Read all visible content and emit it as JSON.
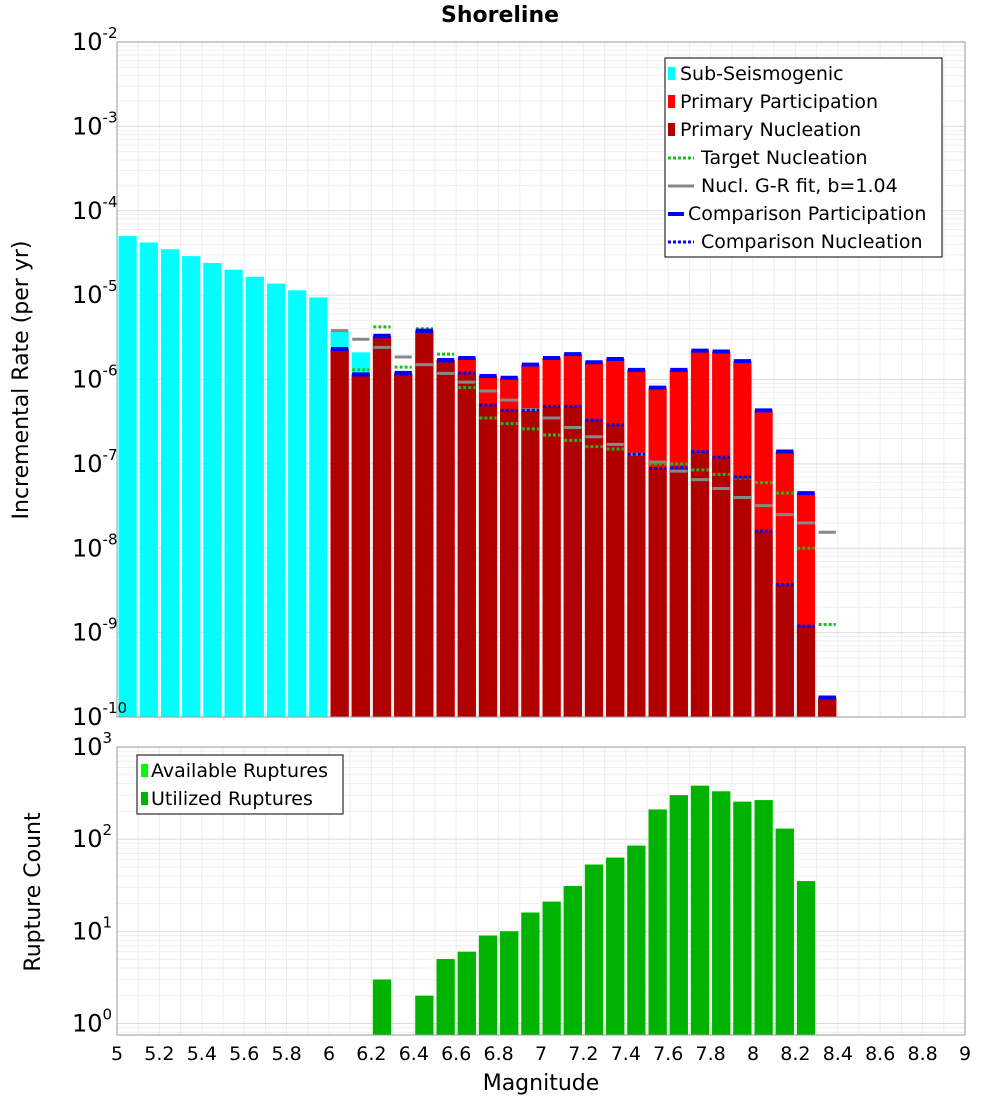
{
  "title": "Shoreline",
  "chart_data": [
    {
      "type": "bar",
      "panel": "top",
      "yscale": "log",
      "xlim": [
        5,
        9
      ],
      "ylim": [
        1e-10,
        0.01
      ],
      "ylabel": "Incremental Rate (per yr)",
      "ytick_exponents": [
        -10,
        -9,
        -8,
        -7,
        -6,
        -5,
        -4,
        -3,
        -2
      ],
      "legend_position": "top-right",
      "legend": [
        {
          "label": "Sub-Seismogenic",
          "style": "bar",
          "color": "#00ffff"
        },
        {
          "label": "Primary Participation",
          "style": "bar",
          "color": "#ff0000"
        },
        {
          "label": "Primary Nucleation",
          "style": "bar",
          "color": "#b00000"
        },
        {
          "label": "Target Nucleation",
          "style": "dotted",
          "color": "#1fba1f"
        },
        {
          "label": "Nucl. G-R fit, b=1.04",
          "style": "solid",
          "color": "#888888"
        },
        {
          "label": "Comparison Participation",
          "style": "solid",
          "color": "#0000ff"
        },
        {
          "label": "Comparison Nucleation",
          "style": "dotted",
          "color": "#0000ff"
        }
      ],
      "sub_seismogenic": {
        "x": [
          5.05,
          5.15,
          5.25,
          5.35,
          5.45,
          5.55,
          5.65,
          5.75,
          5.85,
          5.95,
          6.05,
          6.15
        ],
        "values": [
          5e-05,
          4.2e-05,
          3.5e-05,
          2.9e-05,
          2.4e-05,
          2e-05,
          1.65e-05,
          1.37e-05,
          1.14e-05,
          9.4e-06,
          3.8e-06,
          2.1e-06
        ]
      },
      "x": [
        6.05,
        6.15,
        6.25,
        6.35,
        6.45,
        6.55,
        6.65,
        6.75,
        6.85,
        6.95,
        7.05,
        7.15,
        7.25,
        7.35,
        7.45,
        7.55,
        7.65,
        7.75,
        7.85,
        7.95,
        8.05,
        8.15,
        8.25,
        8.35
      ],
      "participation": [
        2.3e-06,
        1.15e-06,
        3.3e-06,
        1.2e-06,
        3.8e-06,
        1.7e-06,
        1.8e-06,
        1.1e-06,
        1.05e-06,
        1.5e-06,
        1.8e-06,
        2e-06,
        1.6e-06,
        1.75e-06,
        1.3e-06,
        8e-07,
        1.3e-06,
        2.2e-06,
        2.15e-06,
        1.65e-06,
        4.3e-07,
        1.4e-07,
        4.5e-08,
        1.7e-10
      ],
      "nucleation": [
        2.3e-06,
        1.15e-06,
        3.2e-06,
        1.15e-06,
        3.7e-06,
        1.65e-06,
        1.2e-06,
        5e-07,
        4.3e-07,
        4.3e-07,
        4.8e-07,
        4.8e-07,
        3.3e-07,
        2.9e-07,
        1.3e-07,
        8.8e-08,
        9e-08,
        1.4e-07,
        1.2e-07,
        7e-08,
        1.6e-08,
        3.7e-09,
        1.2e-09,
        1.7e-10
      ],
      "target_nucleation": [
        2.3e-06,
        1.3e-06,
        4.2e-06,
        1.4e-06,
        4e-06,
        2e-06,
        8e-07,
        3.5e-07,
        3e-07,
        2.6e-07,
        2.2e-07,
        1.9e-07,
        1.6e-07,
        1.5e-07,
        1.3e-07,
        1e-07,
        1e-07,
        8.5e-08,
        7.5e-08,
        6.8e-08,
        6e-08,
        4.5e-08,
        1e-08,
        1.25e-09
      ],
      "gr_fit": [
        3.8e-06,
        3e-06,
        2.4e-06,
        1.85e-06,
        1.5e-06,
        1.18e-06,
        9.3e-07,
        7.3e-07,
        5.7e-07,
        4.4e-07,
        3.5e-07,
        2.7e-07,
        2.1e-07,
        1.7e-07,
        1.3e-07,
        1.05e-07,
        8.2e-08,
        6.5e-08,
        5.1e-08,
        4e-08,
        3.2e-08,
        2.5e-08,
        2e-08,
        1.55e-08
      ],
      "comparison_participation": [
        2.3e-06,
        1.15e-06,
        3.3e-06,
        1.2e-06,
        3.8e-06,
        1.7e-06,
        1.8e-06,
        1.1e-06,
        1.05e-06,
        1.5e-06,
        1.8e-06,
        2e-06,
        1.6e-06,
        1.75e-06,
        1.3e-06,
        8e-07,
        1.3e-06,
        2.2e-06,
        2.15e-06,
        1.65e-06,
        4.3e-07,
        1.4e-07,
        4.5e-08,
        1.7e-10
      ],
      "comparison_nucleation": [
        2.3e-06,
        1.15e-06,
        3.2e-06,
        1.15e-06,
        3.7e-06,
        1.65e-06,
        1.2e-06,
        5e-07,
        4.3e-07,
        4.3e-07,
        4.8e-07,
        4.8e-07,
        3.3e-07,
        2.9e-07,
        1.3e-07,
        8.8e-08,
        9e-08,
        1.4e-07,
        1.2e-07,
        7e-08,
        1.6e-08,
        3.7e-09,
        1.2e-09,
        1.7e-10
      ]
    },
    {
      "type": "bar",
      "panel": "bottom",
      "yscale": "log",
      "xlim": [
        5,
        9
      ],
      "ylim": [
        0.75,
        1000
      ],
      "xlabel": "Magnitude",
      "ylabel": "Rupture Count",
      "xticks": [
        "5",
        "5.2",
        "5.4",
        "5.6",
        "5.8",
        "6",
        "6.2",
        "6.4",
        "6.6",
        "6.8",
        "7",
        "7.2",
        "7.4",
        "7.6",
        "7.8",
        "8",
        "8.2",
        "8.4",
        "8.6",
        "8.8",
        "9"
      ],
      "ytick_exponents": [
        0,
        1,
        2,
        3
      ],
      "legend_position": "top-left",
      "legend": [
        {
          "label": "Available Ruptures",
          "color": "#00ff00"
        },
        {
          "label": "Utilized Ruptures",
          "color": "#00b300"
        }
      ],
      "x": [
        6.25,
        6.45,
        6.55,
        6.65,
        6.75,
        6.85,
        6.95,
        7.05,
        7.15,
        7.25,
        7.35,
        7.45,
        7.55,
        7.65,
        7.75,
        7.85,
        7.95,
        8.05,
        8.15,
        8.25
      ],
      "available": [
        3,
        2,
        5,
        6,
        9,
        10,
        16,
        21,
        31,
        53,
        63,
        85,
        210,
        300,
        380,
        330,
        255,
        265,
        130,
        35
      ],
      "utilized": [
        3,
        2,
        5,
        6,
        9,
        10,
        16,
        21,
        31,
        53,
        63,
        85,
        210,
        300,
        380,
        330,
        255,
        265,
        130,
        35
      ]
    }
  ]
}
